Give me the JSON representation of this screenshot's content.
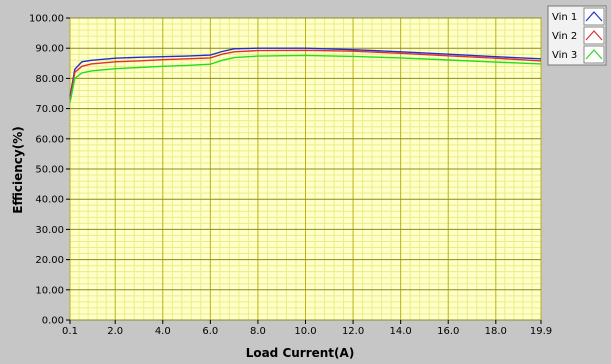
{
  "chart_data": {
    "type": "line",
    "title": "",
    "xlabel": "Load Current(A)",
    "ylabel": "Efficiency(%)",
    "xlim": [
      0.1,
      19.9
    ],
    "ylim": [
      0,
      100
    ],
    "x_ticks": [
      "0.1",
      "2.0",
      "4.0",
      "6.0",
      "8.0",
      "10.0",
      "12.0",
      "14.0",
      "16.0",
      "18.0",
      "19.9"
    ],
    "x_tick_values": [
      0.1,
      2,
      4,
      6,
      8,
      10,
      12,
      14,
      16,
      18,
      19.9
    ],
    "y_ticks": [
      "0.00",
      "10.00",
      "20.00",
      "30.00",
      "40.00",
      "50.00",
      "60.00",
      "70.00",
      "80.00",
      "90.00",
      "100.00"
    ],
    "y_tick_values": [
      0,
      10,
      20,
      30,
      40,
      50,
      60,
      70,
      80,
      90,
      100
    ],
    "grid": true,
    "legend_position": "top-right",
    "series": [
      {
        "name": "Vin 1",
        "color": "#1f2fd6",
        "x": [
          0.1,
          0.3,
          0.6,
          1.0,
          2.0,
          3.0,
          4.0,
          5.0,
          6.0,
          6.5,
          7.0,
          8.0,
          10.0,
          12.0,
          14.0,
          16.0,
          18.0,
          19.9
        ],
        "y": [
          74,
          83,
          85.5,
          86,
          86.7,
          87,
          87.2,
          87.4,
          87.7,
          88.9,
          89.8,
          90,
          90,
          89.5,
          88.8,
          88,
          87.2,
          86.5
        ]
      },
      {
        "name": "Vin 2",
        "color": "#e03030",
        "x": [
          0.1,
          0.3,
          0.6,
          1.0,
          2.0,
          3.0,
          4.0,
          5.0,
          6.0,
          6.5,
          7.0,
          8.0,
          10.0,
          12.0,
          14.0,
          16.0,
          18.0,
          19.9
        ],
        "y": [
          73,
          82,
          84,
          84.8,
          85.5,
          85.8,
          86.2,
          86.5,
          86.8,
          88,
          88.8,
          89.2,
          89.3,
          89,
          88.3,
          87.5,
          86.7,
          85.8
        ]
      },
      {
        "name": "Vin 3",
        "color": "#22dd22",
        "x": [
          0.1,
          0.3,
          0.6,
          1.0,
          2.0,
          3.0,
          4.0,
          5.0,
          6.0,
          6.5,
          7.0,
          8.0,
          10.0,
          12.0,
          14.0,
          16.0,
          18.0,
          19.9
        ],
        "y": [
          72,
          80,
          81.8,
          82.5,
          83.2,
          83.6,
          84,
          84.3,
          84.7,
          86,
          86.9,
          87.4,
          87.6,
          87.3,
          86.8,
          86.1,
          85.4,
          84.8
        ]
      }
    ]
  }
}
